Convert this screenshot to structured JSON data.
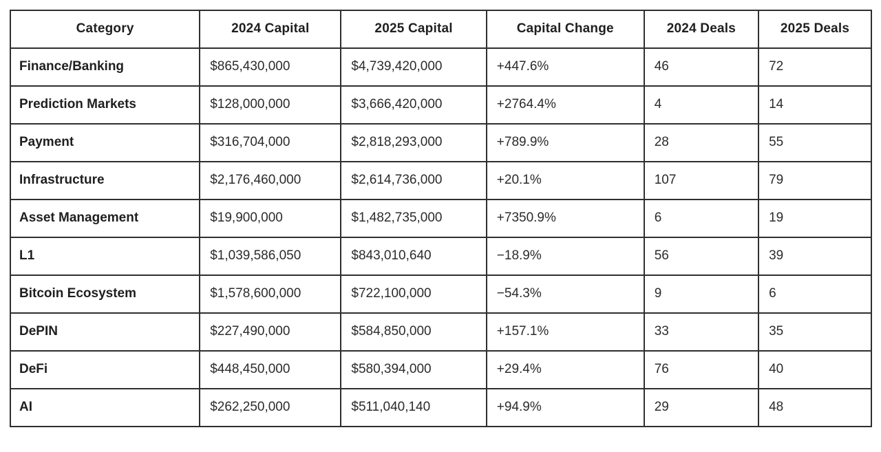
{
  "chart_data": {
    "type": "table",
    "title": "",
    "columns": [
      "Category",
      "2024 Capital",
      "2025 Capital",
      "Capital Change",
      "2024 Deals",
      "2025 Deals"
    ],
    "rows": [
      [
        "Finance/Banking",
        "$865,430,000",
        "$4,739,420,000",
        "+447.6%",
        "46",
        "72"
      ],
      [
        "Prediction Markets",
        "$128,000,000",
        "$3,666,420,000",
        "+2764.4%",
        "4",
        "14"
      ],
      [
        "Payment",
        "$316,704,000",
        "$2,818,293,000",
        "+789.9%",
        "28",
        "55"
      ],
      [
        "Infrastructure",
        "$2,176,460,000",
        "$2,614,736,000",
        "+20.1%",
        "107",
        "79"
      ],
      [
        "Asset Management",
        "$19,900,000",
        "$1,482,735,000",
        "+7350.9%",
        "6",
        "19"
      ],
      [
        "L1",
        "$1,039,586,050",
        "$843,010,640",
        "−18.9%",
        "56",
        "39"
      ],
      [
        "Bitcoin Ecosystem",
        "$1,578,600,000",
        "$722,100,000",
        "−54.3%",
        "9",
        "6"
      ],
      [
        "DePIN",
        "$227,490,000",
        "$584,850,000",
        "+157.1%",
        "33",
        "35"
      ],
      [
        "DeFi",
        "$448,450,000",
        "$580,394,000",
        "+29.4%",
        "76",
        "40"
      ],
      [
        "AI",
        "$262,250,000",
        "$511,040,140",
        "+94.9%",
        "29",
        "48"
      ]
    ],
    "colors": {
      "border": "#2e2e2e",
      "header_text": "#1f1f1f",
      "cell_text": "#2b2b2b",
      "background": "#ffffff"
    }
  }
}
